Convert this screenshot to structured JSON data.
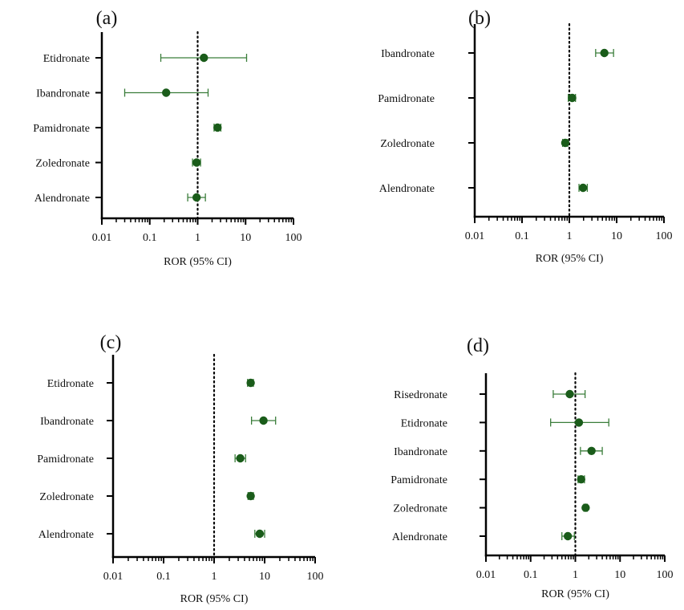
{
  "colors": {
    "marker": "#1a5c1a",
    "whisker": "#3a7d3a",
    "axis": "#000000"
  },
  "chart_data": [
    {
      "type": "forest",
      "panel": "(a)",
      "xlabel": "ROR (95% CI)",
      "xscale": "log",
      "xlim": [
        0.01,
        100
      ],
      "xticks": [
        "0.01",
        "0.1",
        "1",
        "10",
        "100"
      ],
      "reference_line": 1,
      "categories": [
        "Etidronate",
        "Ibandronate",
        "Pamidronate",
        "Zoledronate",
        "Alendronate"
      ],
      "ror": [
        1.35,
        0.22,
        2.6,
        0.95,
        0.95
      ],
      "ci_low": [
        0.17,
        0.03,
        2.2,
        0.78,
        0.62
      ],
      "ci_high": [
        10.5,
        1.65,
        3.05,
        1.15,
        1.45
      ]
    },
    {
      "type": "forest",
      "panel": "(b)",
      "xlabel": "ROR (95% CI)",
      "xscale": "log",
      "xlim": [
        0.01,
        100
      ],
      "xticks": [
        "0.01",
        "0.1",
        "1",
        "10",
        "100"
      ],
      "reference_line": 1,
      "categories": [
        "Ibandronate",
        "Pamidronate",
        "Zoledronate",
        "Alendronate"
      ],
      "ror": [
        5.5,
        1.15,
        0.82,
        1.95
      ],
      "ci_low": [
        3.6,
        0.95,
        0.72,
        1.6
      ],
      "ci_high": [
        8.6,
        1.35,
        0.93,
        2.4
      ]
    },
    {
      "type": "forest",
      "panel": "(c)",
      "xlabel": "ROR (95% CI)",
      "xscale": "log",
      "xlim": [
        0.01,
        100
      ],
      "xticks": [
        "0.01",
        "0.1",
        "1",
        "10",
        "100"
      ],
      "reference_line": 1,
      "categories": [
        "Etidronate",
        "Ibandronate",
        "Pamidronate",
        "Zoledronate",
        "Alendronate"
      ],
      "ror": [
        5.3,
        9.5,
        3.3,
        5.3,
        8.0
      ],
      "ci_low": [
        4.6,
        5.5,
        2.6,
        4.7,
        6.4
      ],
      "ci_high": [
        6.0,
        16.5,
        4.2,
        6.0,
        10.0
      ]
    },
    {
      "type": "forest",
      "panel": "(d)",
      "xlabel": "ROR (95% CI)",
      "xscale": "log",
      "xlim": [
        0.01,
        100
      ],
      "xticks": [
        "0.01",
        "0.1",
        "1",
        "10",
        "100"
      ],
      "reference_line": 1,
      "categories": [
        "Risedronate",
        "Etidronate",
        "Ibandronate",
        "Pamidronate",
        "Zoledronate",
        "Alendronate"
      ],
      "ror": [
        0.75,
        1.2,
        2.3,
        1.35,
        1.7,
        0.68
      ],
      "ci_low": [
        0.32,
        0.28,
        1.3,
        1.15,
        1.55,
        0.5
      ],
      "ci_high": [
        1.65,
        5.6,
        4.0,
        1.6,
        1.85,
        0.95
      ]
    }
  ]
}
